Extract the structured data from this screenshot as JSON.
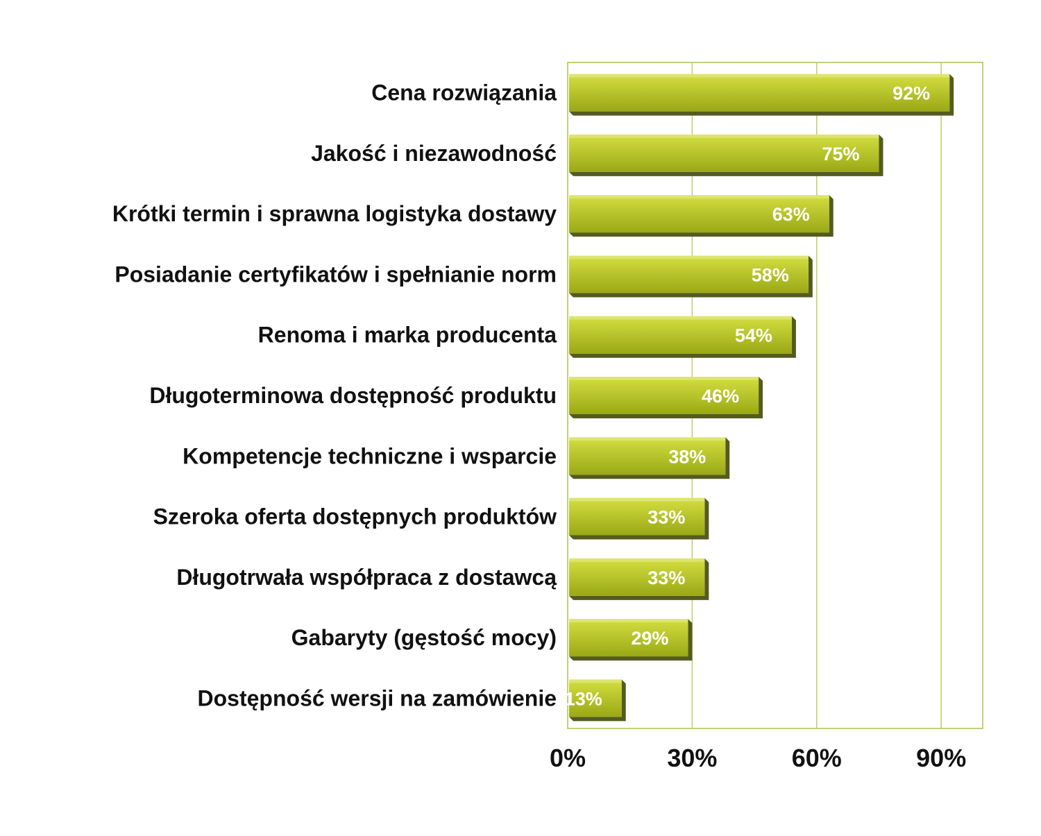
{
  "chart_data": {
    "type": "bar",
    "orientation": "horizontal",
    "title": "",
    "xlabel": "",
    "ylabel": "",
    "categories": [
      "Cena rozwiązania",
      "Jakość i niezawodność",
      "Krótki termin i sprawna logistyka dostawy",
      "Posiadanie certyfikatów i spełnianie norm",
      "Renoma i marka producenta",
      "Długoterminowa dostępność produktu",
      "Kompetencje techniczne i wsparcie",
      "Szeroka oferta dostępnych produktów",
      "Długotrwała współpraca z dostawcą",
      "Gabaryty (gęstość mocy)",
      "Dostępność wersji na zamówienie"
    ],
    "values": [
      92,
      75,
      63,
      58,
      54,
      46,
      38,
      33,
      33,
      29,
      13
    ],
    "data_labels": [
      "92%",
      "75%",
      "63%",
      "58%",
      "54%",
      "46%",
      "38%",
      "33%",
      "33%",
      "29%",
      "13%"
    ],
    "xlim": [
      0,
      100
    ],
    "x_ticks": [
      0,
      30,
      60,
      90
    ],
    "x_tick_labels": [
      "0%",
      "30%",
      "60%",
      "90%"
    ],
    "grid": true,
    "legend": "none",
    "colors": {
      "bar_light": "#d4df40",
      "bar_dark": "#9aa816",
      "bar_shadow": "#555b20",
      "gridline": "#b9cf6a",
      "frame": "#a9c24e"
    }
  }
}
